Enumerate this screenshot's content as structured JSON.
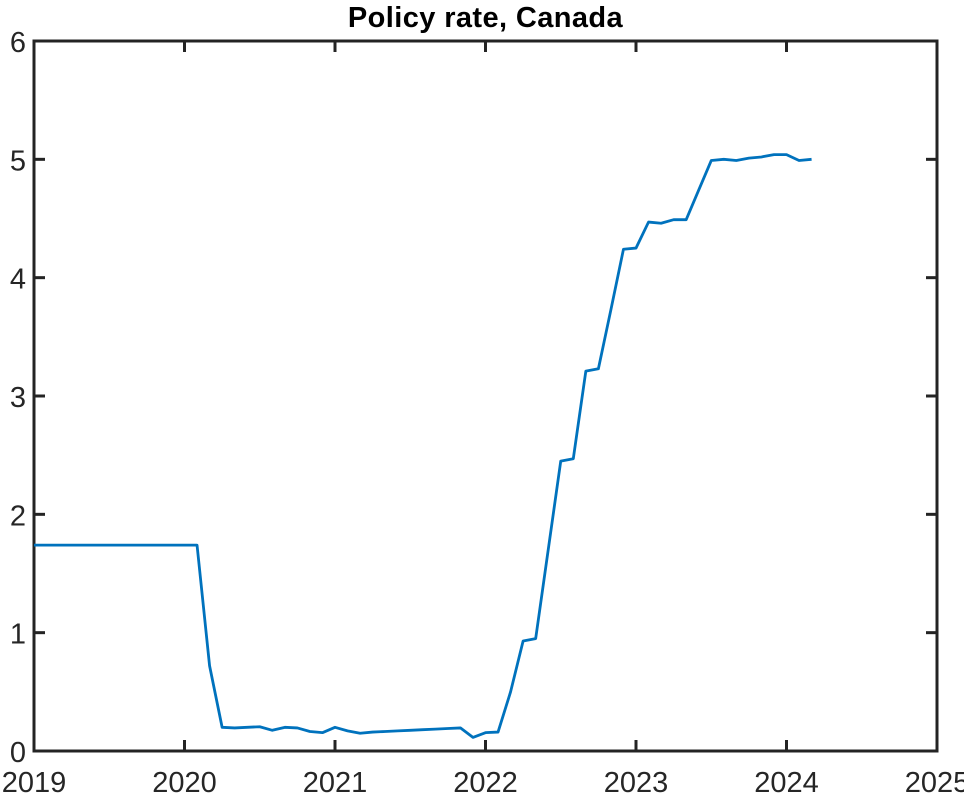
{
  "figure": {
    "background": "#ffffff",
    "title_color": "#000000"
  },
  "chart_data": {
    "type": "line",
    "title": "Policy rate, Canada",
    "xlabel": "",
    "ylabel": "",
    "xlim": [
      2019,
      2025
    ],
    "ylim": [
      0,
      6
    ],
    "x_ticks": [
      2019,
      2020,
      2021,
      2022,
      2023,
      2024,
      2025
    ],
    "y_ticks": [
      0,
      1,
      2,
      3,
      4,
      5,
      6
    ],
    "grid": false,
    "box": true,
    "legend": "none",
    "axis_color": "#242424",
    "tick_label_color": "#262626",
    "series": [
      {
        "name": "Policy rate, Canada",
        "color": "#0072BD",
        "line_width": 2.8,
        "points": [
          [
            "2019-01",
            1.74
          ],
          [
            "2019-02",
            1.74
          ],
          [
            "2019-03",
            1.74
          ],
          [
            "2019-04",
            1.74
          ],
          [
            "2019-05",
            1.74
          ],
          [
            "2019-06",
            1.74
          ],
          [
            "2019-07",
            1.74
          ],
          [
            "2019-08",
            1.74
          ],
          [
            "2019-09",
            1.74
          ],
          [
            "2019-10",
            1.74
          ],
          [
            "2019-11",
            1.74
          ],
          [
            "2019-12",
            1.74
          ],
          [
            "2020-01",
            1.74
          ],
          [
            "2020-02",
            1.74
          ],
          [
            "2020-03",
            0.72
          ],
          [
            "2020-04",
            0.2
          ],
          [
            "2020-05",
            0.195
          ],
          [
            "2020-06",
            0.2
          ],
          [
            "2020-07",
            0.205
          ],
          [
            "2020-08",
            0.175
          ],
          [
            "2020-09",
            0.2
          ],
          [
            "2020-10",
            0.195
          ],
          [
            "2020-11",
            0.165
          ],
          [
            "2020-12",
            0.155
          ],
          [
            "2021-01",
            0.2
          ],
          [
            "2021-02",
            0.17
          ],
          [
            "2021-03",
            0.15
          ],
          [
            "2021-04",
            0.16
          ],
          [
            "2021-05",
            0.165
          ],
          [
            "2021-06",
            0.17
          ],
          [
            "2021-07",
            0.175
          ],
          [
            "2021-08",
            0.18
          ],
          [
            "2021-09",
            0.185
          ],
          [
            "2021-10",
            0.19
          ],
          [
            "2021-11",
            0.195
          ],
          [
            "2021-12",
            0.115
          ],
          [
            "2022-01",
            0.155
          ],
          [
            "2022-02",
            0.16
          ],
          [
            "2022-03",
            0.5
          ],
          [
            "2022-04",
            0.93
          ],
          [
            "2022-05",
            0.95
          ],
          [
            "2022-06",
            1.7
          ],
          [
            "2022-07",
            2.45
          ],
          [
            "2022-08",
            2.47
          ],
          [
            "2022-09",
            3.21
          ],
          [
            "2022-10",
            3.23
          ],
          [
            "2022-11",
            3.73
          ],
          [
            "2022-12",
            4.24
          ],
          [
            "2023-01",
            4.25
          ],
          [
            "2023-02",
            4.47
          ],
          [
            "2023-03",
            4.46
          ],
          [
            "2023-04",
            4.49
          ],
          [
            "2023-05",
            4.49
          ],
          [
            "2023-06",
            4.74
          ],
          [
            "2023-07",
            4.99
          ],
          [
            "2023-08",
            5.0
          ],
          [
            "2023-09",
            4.99
          ],
          [
            "2023-10",
            5.01
          ],
          [
            "2023-11",
            5.02
          ],
          [
            "2023-12",
            5.04
          ],
          [
            "2024-01",
            5.04
          ],
          [
            "2024-02",
            4.99
          ],
          [
            "2024-03",
            5.0
          ]
        ]
      }
    ]
  }
}
